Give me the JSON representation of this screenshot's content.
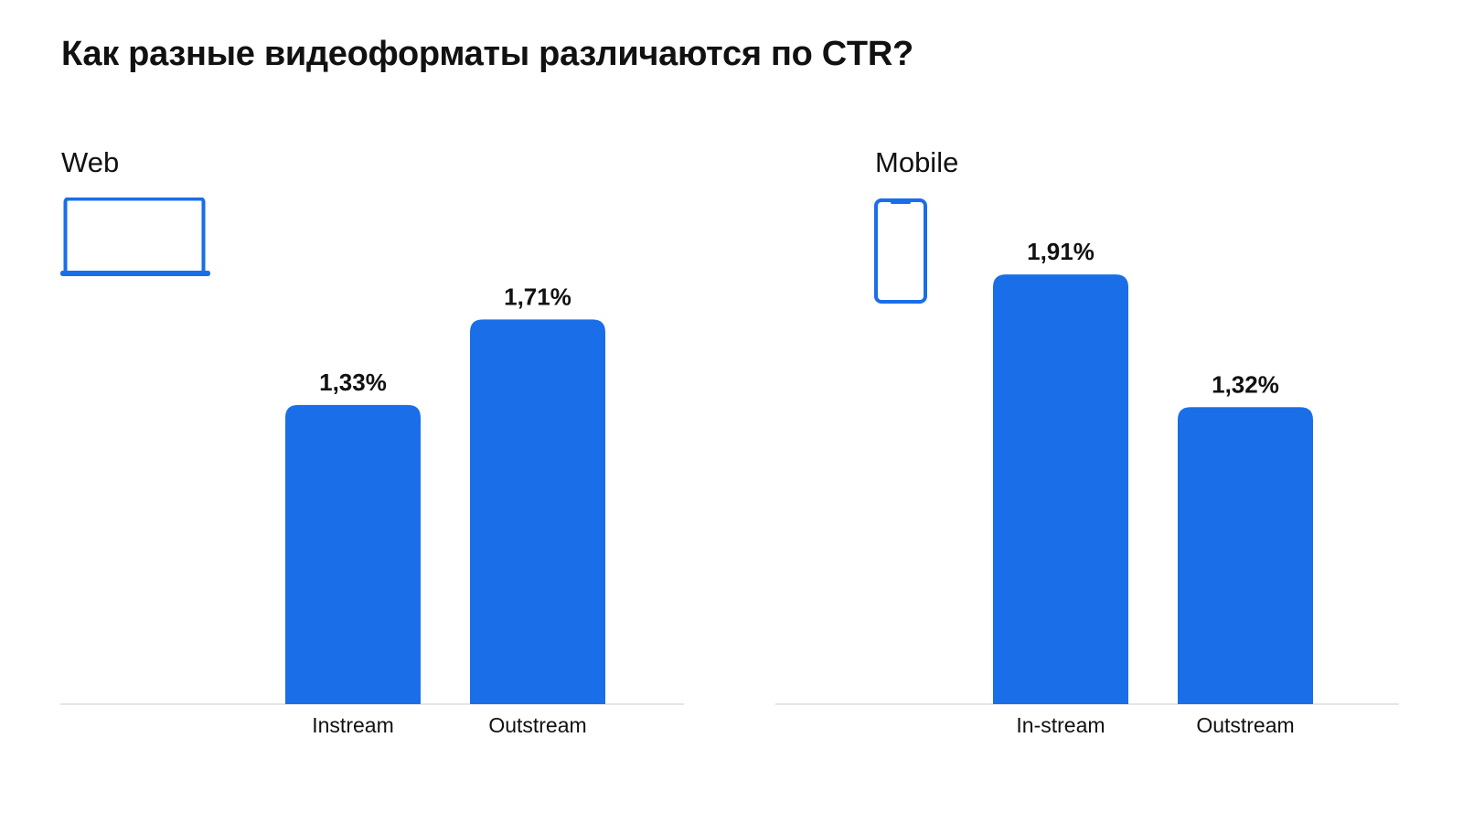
{
  "page": {
    "title": "Как разные видеоформаты различаются по CTR?"
  },
  "colors": {
    "bar": "#1A6EE8",
    "icon": "#1A6EE8",
    "baseline": "#DDDDDD",
    "text": "#111111"
  },
  "icons": {
    "web": "laptop-icon",
    "mobile": "smartphone-icon"
  },
  "chart_data": [
    {
      "type": "bar",
      "title": "Web",
      "categories": [
        "Instream",
        "Outstream"
      ],
      "values": [
        1.33,
        1.71
      ],
      "value_labels": [
        "1,33%",
        "1,71%"
      ],
      "unit": "%",
      "ylim": [
        0,
        2.0
      ],
      "grid": false,
      "legend": "none"
    },
    {
      "type": "bar",
      "title": "Mobile",
      "categories": [
        "In-stream",
        "Outstream"
      ],
      "values": [
        1.91,
        1.32
      ],
      "value_labels": [
        "1,91%",
        "1,32%"
      ],
      "unit": "%",
      "ylim": [
        0,
        2.0
      ],
      "grid": false,
      "legend": "none"
    }
  ]
}
